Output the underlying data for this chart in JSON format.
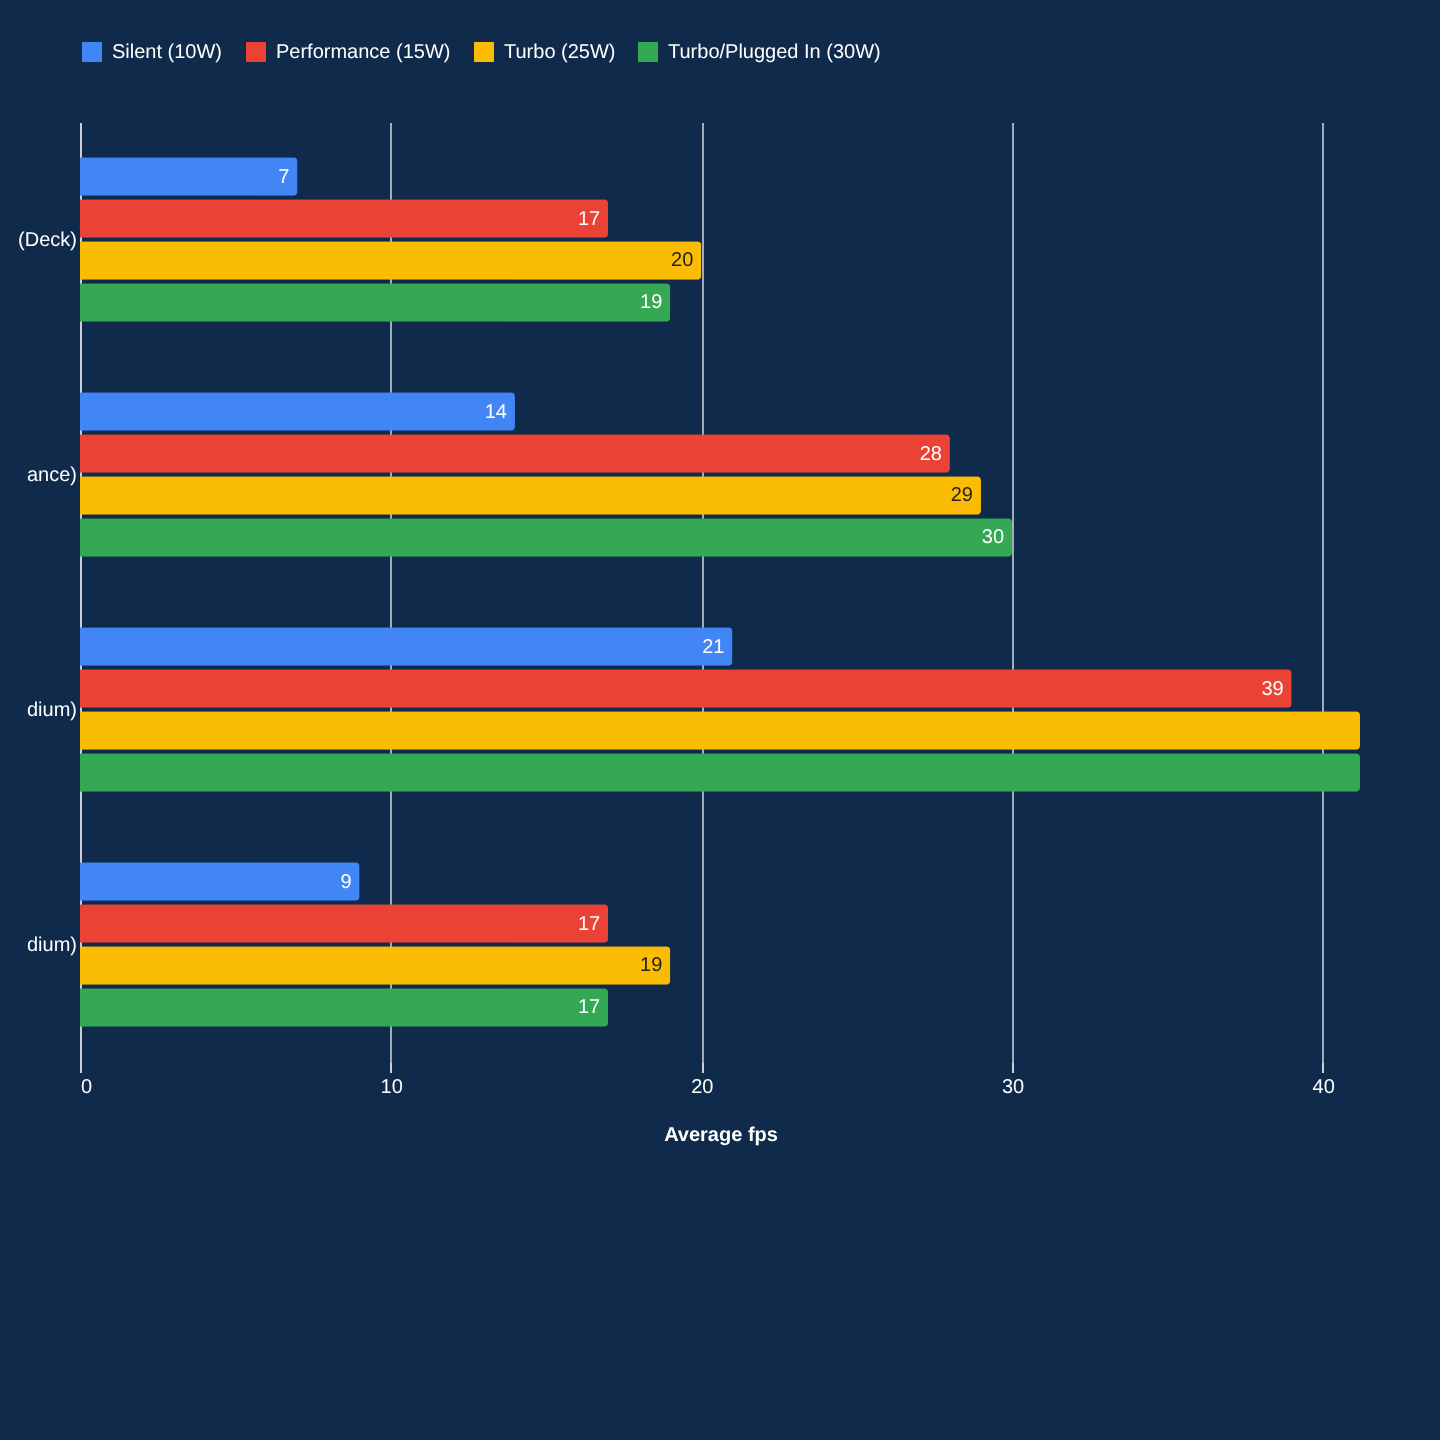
{
  "chart_data": {
    "type": "bar",
    "orientation": "horizontal",
    "xlabel": "Average fps",
    "categories": [
      "(Deck)",
      "ance)",
      "dium)",
      "dium)"
    ],
    "series": [
      {
        "name": "Silent (10W)",
        "color": "#4285f4",
        "values": [
          7,
          14,
          21,
          9
        ],
        "value_labels": [
          "7",
          "14",
          "21",
          "9"
        ]
      },
      {
        "name": "Performance (15W)",
        "color": "#ea4335",
        "values": [
          17,
          28,
          39,
          17
        ],
        "value_labels": [
          "17",
          "28",
          "39",
          "17"
        ]
      },
      {
        "name": "Turbo (25W)",
        "color": "#fbbc04",
        "values": [
          20,
          29,
          41.2,
          19
        ],
        "value_labels": [
          "20",
          "29",
          null,
          "19"
        ]
      },
      {
        "name": "Turbo/Plugged In (30W)",
        "color": "#34a853",
        "values": [
          19,
          30,
          41.2,
          17
        ],
        "value_labels": [
          "19",
          "30",
          null,
          "17"
        ]
      }
    ],
    "xlim": [
      0,
      41.2
    ],
    "xticks": [
      0,
      10,
      20,
      30,
      40
    ],
    "grid": "x",
    "legend": "top"
  }
}
